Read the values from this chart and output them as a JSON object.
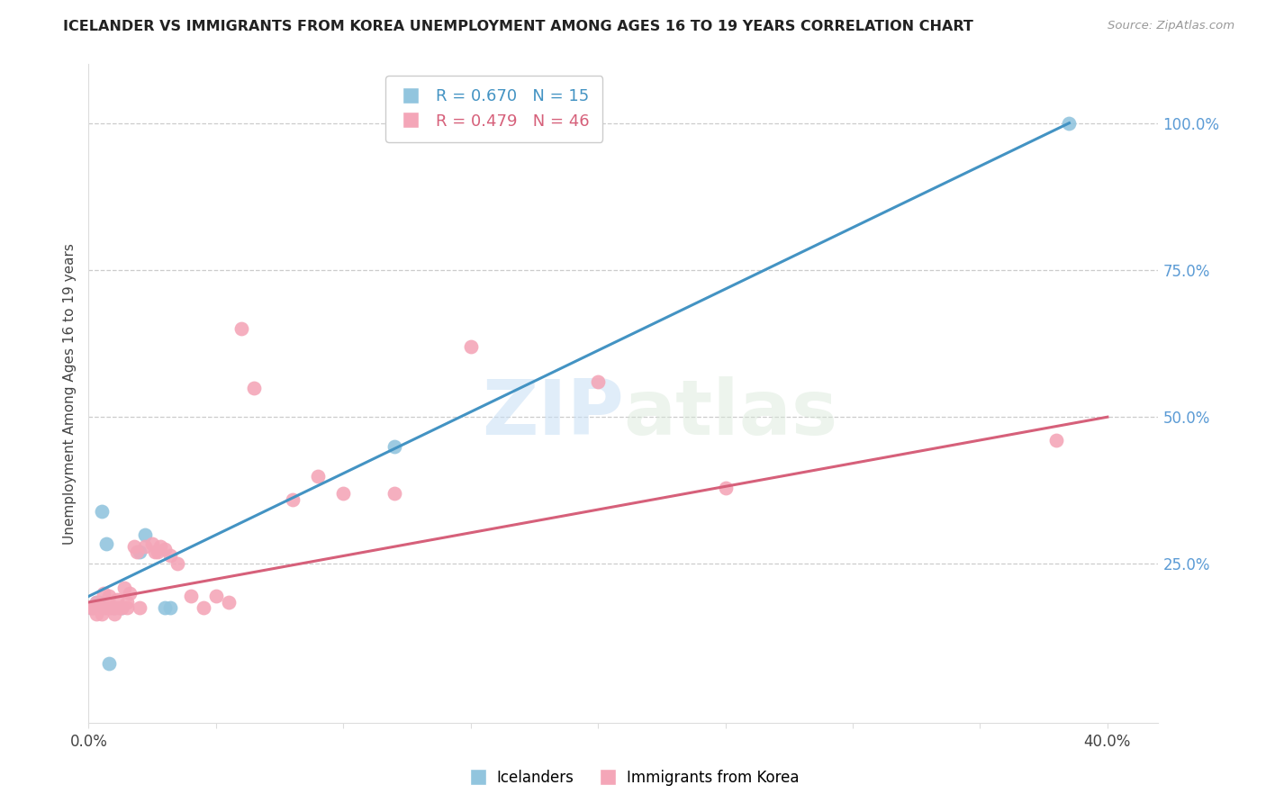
{
  "title": "ICELANDER VS IMMIGRANTS FROM KOREA UNEMPLOYMENT AMONG AGES 16 TO 19 YEARS CORRELATION CHART",
  "source": "Source: ZipAtlas.com",
  "ylabel": "Unemployment Among Ages 16 to 19 years",
  "xlim": [
    0.0,
    0.42
  ],
  "ylim": [
    -0.02,
    1.1
  ],
  "yticks": [
    0.25,
    0.5,
    0.75,
    1.0
  ],
  "ytick_labels": [
    "25.0%",
    "50.0%",
    "75.0%",
    "100.0%"
  ],
  "xticks": [
    0.0,
    0.05,
    0.1,
    0.15,
    0.2,
    0.25,
    0.3,
    0.35,
    0.4
  ],
  "xtick_labels": [
    "0.0%",
    "",
    "",
    "",
    "",
    "",
    "",
    "",
    "40.0%"
  ],
  "blue_color": "#92c5de",
  "pink_color": "#f4a6b8",
  "blue_line_color": "#4393c3",
  "pink_line_color": "#d6607a",
  "right_axis_color": "#5b9bd5",
  "legend_blue_R": "R = 0.670",
  "legend_blue_N": "N = 15",
  "legend_pink_R": "R = 0.479",
  "legend_pink_N": "N = 46",
  "label_icelanders": "Icelanders",
  "label_korea": "Immigrants from Korea",
  "watermark_zip": "ZIP",
  "watermark_atlas": "atlas",
  "blue_line_x": [
    0.0,
    0.385
  ],
  "blue_line_y": [
    0.195,
    1.0
  ],
  "pink_line_x": [
    0.0,
    0.4
  ],
  "pink_line_y": [
    0.185,
    0.5
  ],
  "icelanders_x": [
    0.001,
    0.003,
    0.004,
    0.005,
    0.006,
    0.007,
    0.01,
    0.013,
    0.02,
    0.022,
    0.03,
    0.032,
    0.12,
    0.385,
    0.008
  ],
  "icelanders_y": [
    0.175,
    0.185,
    0.185,
    0.34,
    0.175,
    0.285,
    0.175,
    0.175,
    0.27,
    0.3,
    0.175,
    0.175,
    0.45,
    1.0,
    0.08
  ],
  "korea_x": [
    0.001,
    0.002,
    0.003,
    0.003,
    0.004,
    0.005,
    0.005,
    0.006,
    0.007,
    0.008,
    0.008,
    0.009,
    0.01,
    0.01,
    0.011,
    0.012,
    0.013,
    0.014,
    0.015,
    0.015,
    0.016,
    0.018,
    0.019,
    0.02,
    0.022,
    0.025,
    0.026,
    0.027,
    0.028,
    0.03,
    0.032,
    0.035,
    0.04,
    0.045,
    0.05,
    0.055,
    0.06,
    0.065,
    0.08,
    0.09,
    0.1,
    0.12,
    0.15,
    0.2,
    0.25,
    0.38
  ],
  "korea_y": [
    0.175,
    0.175,
    0.185,
    0.165,
    0.175,
    0.175,
    0.165,
    0.2,
    0.175,
    0.175,
    0.195,
    0.175,
    0.165,
    0.175,
    0.19,
    0.175,
    0.175,
    0.21,
    0.175,
    0.185,
    0.2,
    0.28,
    0.27,
    0.175,
    0.28,
    0.285,
    0.27,
    0.27,
    0.28,
    0.275,
    0.265,
    0.25,
    0.195,
    0.175,
    0.195,
    0.185,
    0.65,
    0.55,
    0.36,
    0.4,
    0.37,
    0.37,
    0.62,
    0.56,
    0.38,
    0.46
  ]
}
